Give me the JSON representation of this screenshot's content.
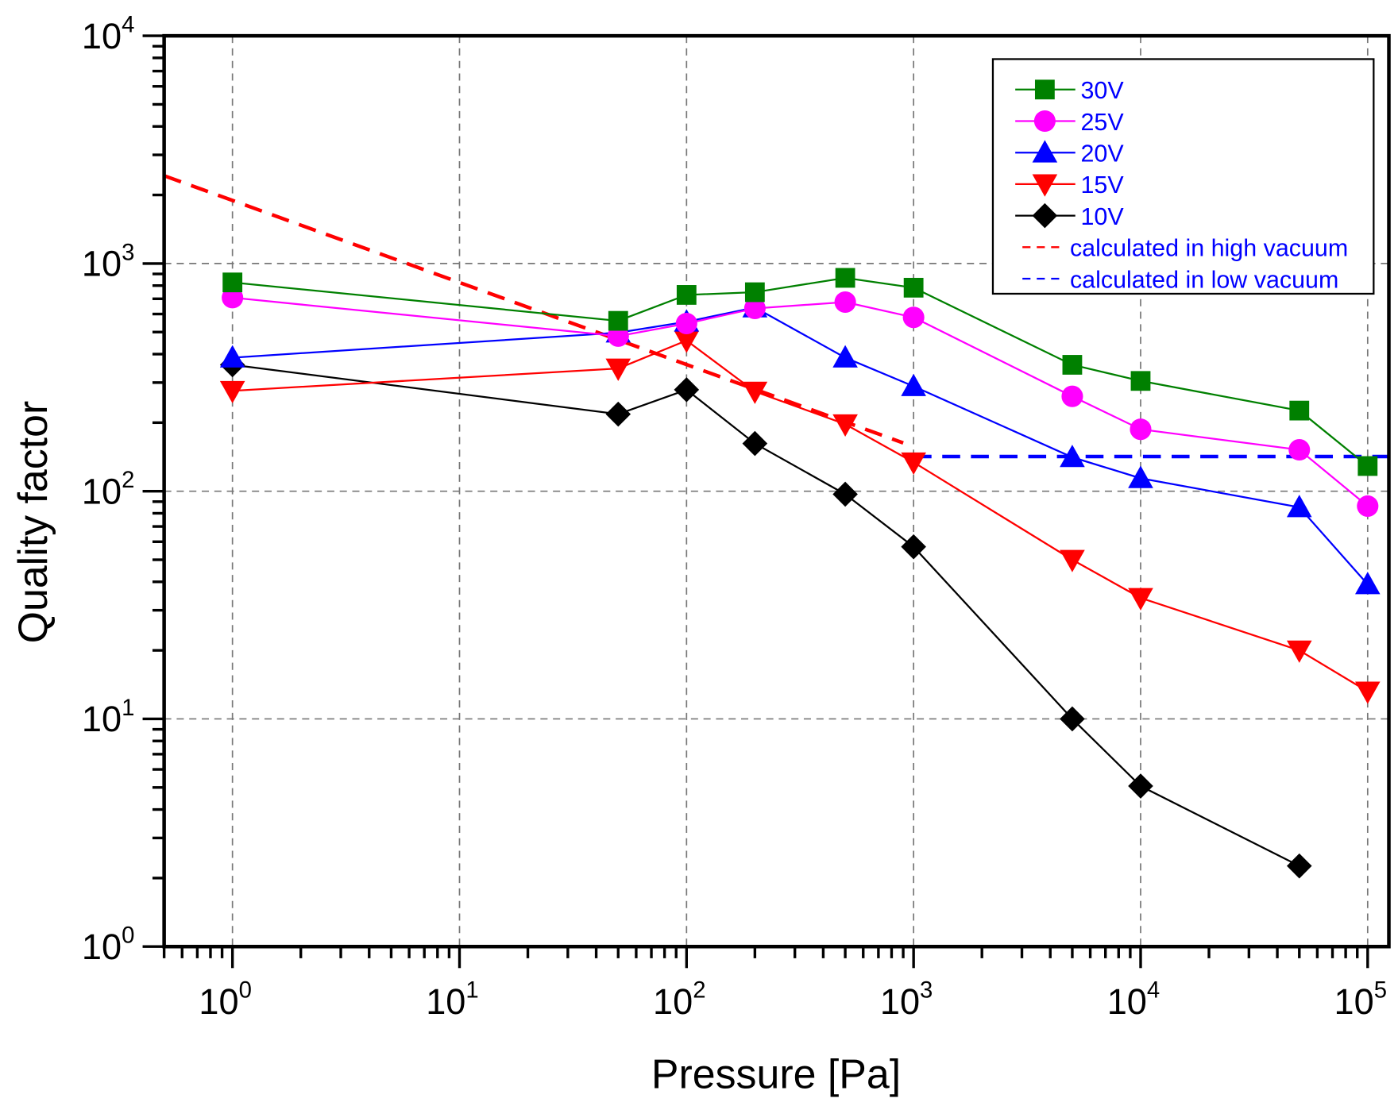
{
  "chart_data": {
    "type": "line",
    "xlabel": "Pressure [Pa]",
    "ylabel": "Quality factor",
    "xscale": "log",
    "yscale": "log",
    "xlim": [
      0.5,
      124000
    ],
    "ylim": [
      1,
      10000
    ],
    "grid": true,
    "legend_position": "top-right",
    "x_ticks": [
      {
        "value": 1,
        "base": "10",
        "exp": "0"
      },
      {
        "value": 10,
        "base": "10",
        "exp": "1"
      },
      {
        "value": 100,
        "base": "10",
        "exp": "2"
      },
      {
        "value": 1000,
        "base": "10",
        "exp": "3"
      },
      {
        "value": 10000,
        "base": "10",
        "exp": "4"
      },
      {
        "value": 100000,
        "base": "10",
        "exp": "5"
      }
    ],
    "y_ticks": [
      {
        "value": 1,
        "base": "10",
        "exp": "0"
      },
      {
        "value": 10,
        "base": "10",
        "exp": "1"
      },
      {
        "value": 100,
        "base": "10",
        "exp": "2"
      },
      {
        "value": 1000,
        "base": "10",
        "exp": "3"
      },
      {
        "value": 10000,
        "base": "10",
        "exp": "4"
      }
    ],
    "series": [
      {
        "name": "30V",
        "color": "#008000",
        "marker": "square",
        "x": [
          1,
          50,
          100,
          200,
          500,
          1000,
          5000,
          10000,
          50000,
          100000
        ],
        "y": [
          826,
          560,
          728,
          748,
          865,
          783,
          359,
          305,
          226,
          129
        ]
      },
      {
        "name": "25V",
        "color": "#ff00ff",
        "marker": "circle",
        "x": [
          1,
          50,
          100,
          200,
          500,
          1000,
          5000,
          10000,
          50000,
          100000
        ],
        "y": [
          708,
          480,
          545,
          635,
          677,
          580,
          261,
          187,
          152,
          86
        ]
      },
      {
        "name": "20V",
        "color": "#0000ff",
        "marker": "triangle-up",
        "x": [
          1,
          50,
          100,
          200,
          500,
          1000,
          5000,
          10000,
          50000,
          100000
        ],
        "y": [
          386,
          497,
          555,
          641,
          386,
          289,
          141,
          114,
          85,
          39
        ]
      },
      {
        "name": "15V",
        "color": "#ff0000",
        "marker": "triangle-down",
        "x": [
          1,
          50,
          100,
          200,
          500,
          1000,
          5000,
          10000,
          50000,
          100000
        ],
        "y": [
          276,
          346,
          459,
          274,
          197,
          134,
          50,
          34,
          20,
          13.2
        ]
      },
      {
        "name": "10V",
        "color": "#000000",
        "marker": "diamond",
        "x": [
          1,
          50,
          100,
          200,
          500,
          1000,
          5000,
          10000,
          50000
        ],
        "y": [
          359,
          218,
          279,
          162,
          97,
          57,
          10,
          5.07,
          2.26
        ]
      },
      {
        "name": "calculated in high vacuum",
        "color": "#ff0000",
        "marker": "none",
        "dashed": true,
        "x": [
          0.5,
          900
        ],
        "y": [
          2430,
          163
        ]
      },
      {
        "name": "calculated in low vacuum",
        "color": "#0000ff",
        "marker": "none",
        "dashed": true,
        "x": [
          1000,
          124000
        ],
        "y": [
          142,
          142
        ]
      }
    ]
  }
}
